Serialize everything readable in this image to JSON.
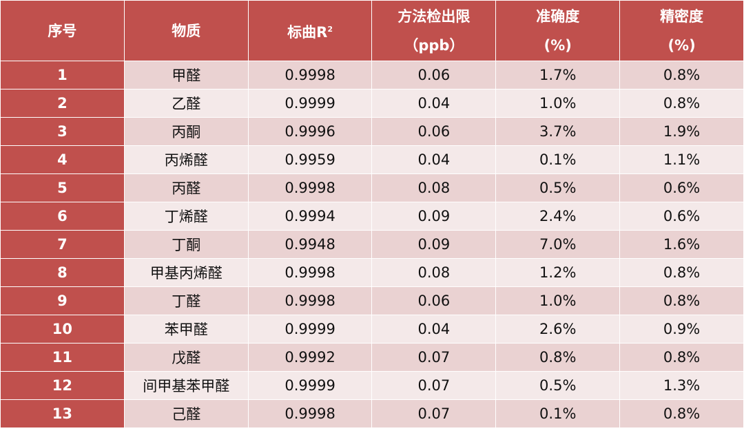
{
  "colors": {
    "header": "#c0504d",
    "row_odd": "#ead2d2",
    "row_even": "#f4e9e9"
  },
  "headers": {
    "index": "序号",
    "substance": "物质",
    "r2": "标曲R",
    "r2_sup": "2",
    "lod_line1": "方法检出限",
    "lod_line2": "（ppb）",
    "acc_line1": "准确度",
    "acc_line2": "(%)",
    "prec_line1": "精密度",
    "prec_line2": "(%)"
  },
  "rows": [
    {
      "index": "1",
      "substance": "甲醛",
      "r2": "0.9998",
      "lod": "0.06",
      "accuracy": "1.7%",
      "precision": "0.8%"
    },
    {
      "index": "2",
      "substance": "乙醛",
      "r2": "0.9999",
      "lod": "0.04",
      "accuracy": "1.0%",
      "precision": "0.8%"
    },
    {
      "index": "3",
      "substance": "丙酮",
      "r2": "0.9996",
      "lod": "0.06",
      "accuracy": "3.7%",
      "precision": "1.9%"
    },
    {
      "index": "4",
      "substance": "丙烯醛",
      "r2": "0.9959",
      "lod": "0.04",
      "accuracy": "0.1%",
      "precision": "1.1%"
    },
    {
      "index": "5",
      "substance": "丙醛",
      "r2": "0.9998",
      "lod": "0.08",
      "accuracy": "0.5%",
      "precision": "0.6%"
    },
    {
      "index": "6",
      "substance": "丁烯醛",
      "r2": "0.9994",
      "lod": "0.09",
      "accuracy": "2.4%",
      "precision": "0.6%"
    },
    {
      "index": "7",
      "substance": "丁酮",
      "r2": "0.9948",
      "lod": "0.09",
      "accuracy": "7.0%",
      "precision": "1.6%"
    },
    {
      "index": "8",
      "substance": "甲基丙烯醛",
      "r2": "0.9998",
      "lod": "0.08",
      "accuracy": "1.2%",
      "precision": "0.8%"
    },
    {
      "index": "9",
      "substance": "丁醛",
      "r2": "0.9998",
      "lod": "0.06",
      "accuracy": "1.0%",
      "precision": "0.8%"
    },
    {
      "index": "10",
      "substance": "苯甲醛",
      "r2": "0.9999",
      "lod": "0.04",
      "accuracy": "2.6%",
      "precision": "0.9%"
    },
    {
      "index": "11",
      "substance": "戊醛",
      "r2": "0.9992",
      "lod": "0.07",
      "accuracy": "0.8%",
      "precision": "0.8%"
    },
    {
      "index": "12",
      "substance": "间甲基苯甲醛",
      "r2": "0.9999",
      "lod": "0.07",
      "accuracy": "0.5%",
      "precision": "1.3%"
    },
    {
      "index": "13",
      "substance": "己醛",
      "r2": "0.9998",
      "lod": "0.07",
      "accuracy": "0.1%",
      "precision": "0.8%"
    }
  ]
}
